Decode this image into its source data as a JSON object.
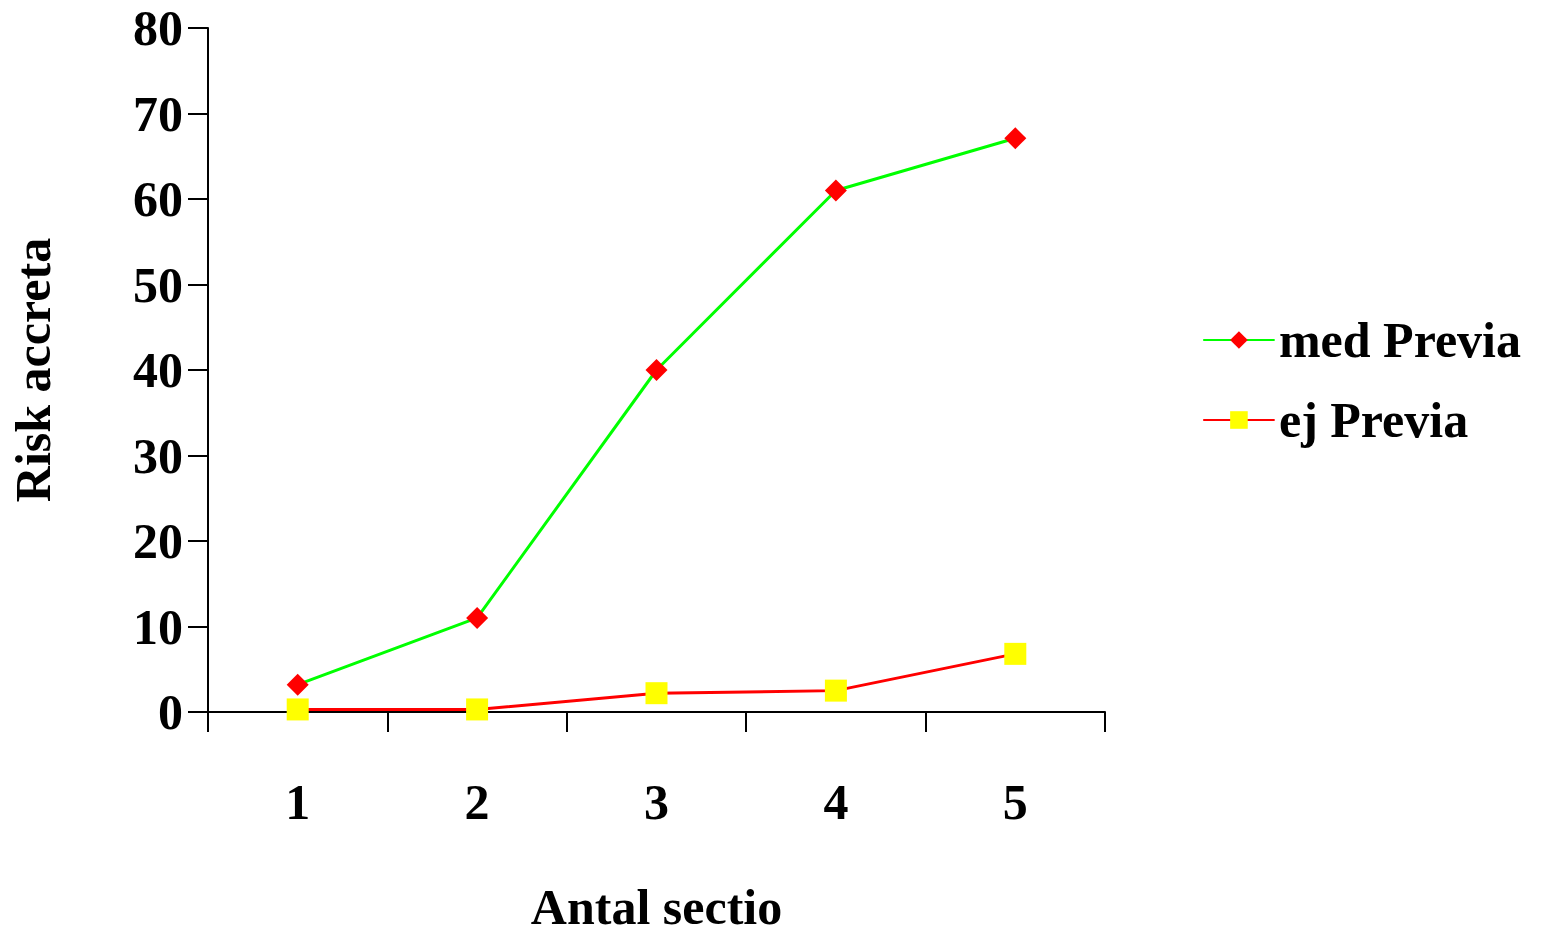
{
  "chart_data": {
    "type": "line",
    "xlabel": "Antal sectio",
    "ylabel": "Risk accreta",
    "categories": [
      "1",
      "2",
      "3",
      "4",
      "5"
    ],
    "series": [
      {
        "name": "med Previa",
        "color": "#00ff00",
        "marker": "diamond",
        "colors": [
          "#ff0000",
          "#ff0000",
          "#ff0000",
          "#ff0000",
          "#ff0000"
        ],
        "values": [
          3.2,
          11,
          40,
          61,
          67.1
        ]
      },
      {
        "name": "ej Previa",
        "color": "#ff0000",
        "marker": "square",
        "colors": [
          "#ffff00",
          "#ffff00",
          "#ffff00",
          "#ffff00",
          "#ffff00"
        ],
        "values": [
          0.3,
          0.3,
          2.2,
          2.5,
          6.8
        ]
      }
    ],
    "ylim": [
      0,
      80
    ],
    "yticks": [
      0,
      10,
      20,
      30,
      40,
      50,
      60,
      70,
      80
    ],
    "grid": false,
    "legend": "right",
    "line_style": "solid"
  }
}
